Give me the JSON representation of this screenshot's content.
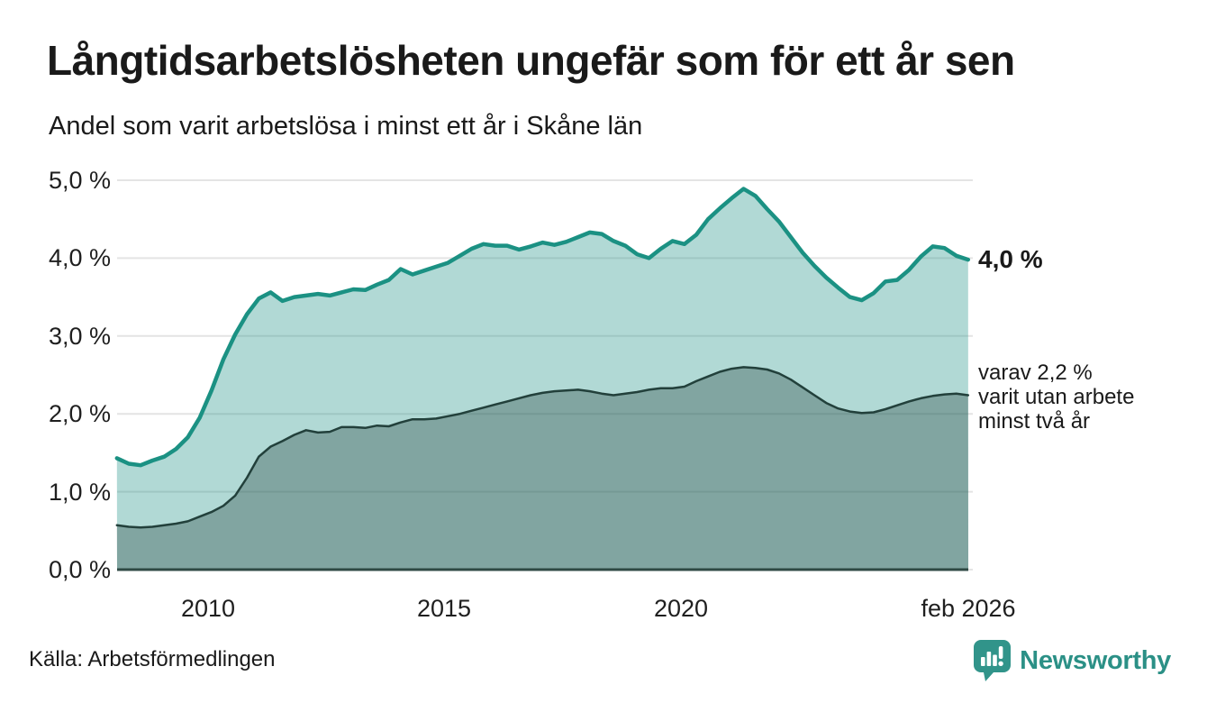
{
  "header": {
    "title": "Långtidsarbetslösheten ungefär som för ett år sen",
    "subtitle": "Andel som varit arbetslösa i minst ett år i Skåne län"
  },
  "chart_data": {
    "type": "area",
    "title": "Långtidsarbetslösheten ungefär som för ett år sen",
    "subtitle": "Andel som varit arbetslösa i minst ett år i Skåne län",
    "x_unit": "decimal_year_monthly_series_feb2008_to_feb2026",
    "xlim": [
      2008.083,
      2026.083
    ],
    "ylim": [
      0,
      5.0
    ],
    "grid": "horizontal",
    "x": [
      2008.08,
      2008.33,
      2008.58,
      2008.83,
      2009.08,
      2009.33,
      2009.58,
      2009.83,
      2010.08,
      2010.33,
      2010.58,
      2010.83,
      2011.08,
      2011.33,
      2011.58,
      2011.83,
      2012.08,
      2012.33,
      2012.58,
      2012.83,
      2013.08,
      2013.33,
      2013.58,
      2013.83,
      2014.08,
      2014.33,
      2014.58,
      2014.83,
      2015.08,
      2015.33,
      2015.58,
      2015.83,
      2016.08,
      2016.33,
      2016.58,
      2016.83,
      2017.08,
      2017.33,
      2017.58,
      2017.83,
      2018.08,
      2018.33,
      2018.58,
      2018.83,
      2019.08,
      2019.33,
      2019.58,
      2019.83,
      2020.08,
      2020.33,
      2020.58,
      2020.83,
      2021.08,
      2021.33,
      2021.58,
      2021.83,
      2022.08,
      2022.33,
      2022.58,
      2022.83,
      2023.08,
      2023.33,
      2023.58,
      2023.83,
      2024.08,
      2024.33,
      2024.58,
      2024.83,
      2025.08,
      2025.33,
      2025.58,
      2025.83,
      2026.08
    ],
    "series": [
      {
        "name": "Andel arbetslösa minst ett år",
        "color": "#1b9183",
        "fill": "rgba(27,145,131,0.34)",
        "values": [
          1.43,
          1.36,
          1.34,
          1.4,
          1.45,
          1.55,
          1.7,
          1.95,
          2.3,
          2.7,
          3.02,
          3.28,
          3.48,
          3.56,
          3.45,
          3.5,
          3.52,
          3.54,
          3.52,
          3.56,
          3.6,
          3.59,
          3.66,
          3.72,
          3.86,
          3.79,
          3.84,
          3.89,
          3.94,
          4.03,
          4.12,
          4.18,
          4.16,
          4.16,
          4.11,
          4.15,
          4.2,
          4.17,
          4.21,
          4.27,
          4.33,
          4.31,
          4.22,
          4.16,
          4.05,
          4.0,
          4.12,
          4.22,
          4.18,
          4.3,
          4.5,
          4.64,
          4.77,
          4.89,
          4.8,
          4.63,
          4.47,
          4.27,
          4.07,
          3.9,
          3.75,
          3.62,
          3.5,
          3.46,
          3.55,
          3.7,
          3.72,
          3.85,
          4.02,
          4.15,
          4.13,
          4.03,
          3.98
        ]
      },
      {
        "name": "Andel arbetslösa minst två år",
        "color": "#22403b",
        "fill": "rgba(32,60,55,0.33)",
        "values": [
          0.57,
          0.55,
          0.54,
          0.55,
          0.57,
          0.59,
          0.62,
          0.68,
          0.74,
          0.82,
          0.95,
          1.18,
          1.45,
          1.58,
          1.65,
          1.73,
          1.79,
          1.76,
          1.77,
          1.83,
          1.83,
          1.82,
          1.85,
          1.84,
          1.89,
          1.93,
          1.93,
          1.94,
          1.97,
          2.0,
          2.04,
          2.08,
          2.12,
          2.16,
          2.2,
          2.24,
          2.27,
          2.29,
          2.3,
          2.31,
          2.29,
          2.26,
          2.24,
          2.26,
          2.28,
          2.31,
          2.33,
          2.33,
          2.35,
          2.42,
          2.48,
          2.54,
          2.58,
          2.6,
          2.59,
          2.57,
          2.52,
          2.44,
          2.34,
          2.24,
          2.14,
          2.07,
          2.03,
          2.01,
          2.02,
          2.06,
          2.11,
          2.16,
          2.2,
          2.23,
          2.25,
          2.26,
          2.24
        ]
      }
    ],
    "yticks": [
      {
        "value": 5.0,
        "label": "5,0 %"
      },
      {
        "value": 4.0,
        "label": "4,0 %"
      },
      {
        "value": 3.0,
        "label": "3,0 %"
      },
      {
        "value": 2.0,
        "label": "2,0 %"
      },
      {
        "value": 1.0,
        "label": "1,0 %"
      },
      {
        "value": 0.0,
        "label": "0,0 %"
      }
    ],
    "xticks": [
      {
        "value": 2010.0,
        "label": "2010"
      },
      {
        "value": 2015.0,
        "label": "2015"
      },
      {
        "value": 2020.0,
        "label": "2020"
      },
      {
        "value": 2026.083,
        "label": "feb 2026"
      }
    ],
    "annotations": {
      "end_value_label": "4,0 %",
      "note_lines": [
        "varav 2,2 %",
        "varit utan arbete",
        "minst två år"
      ]
    }
  },
  "colors": {
    "accent_line": "#1b9183",
    "dark_line": "#22403b",
    "light_fill": "rgba(27,145,131,0.34)",
    "dark_fill": "rgba(32,60,55,0.33)",
    "gridline": "#e4e4e4",
    "baseline": "#2f4944",
    "brand_teal": "#2b9086"
  },
  "footer": {
    "source": "Källa: Arbetsförmedlingen",
    "brand": "Newsworthy"
  }
}
